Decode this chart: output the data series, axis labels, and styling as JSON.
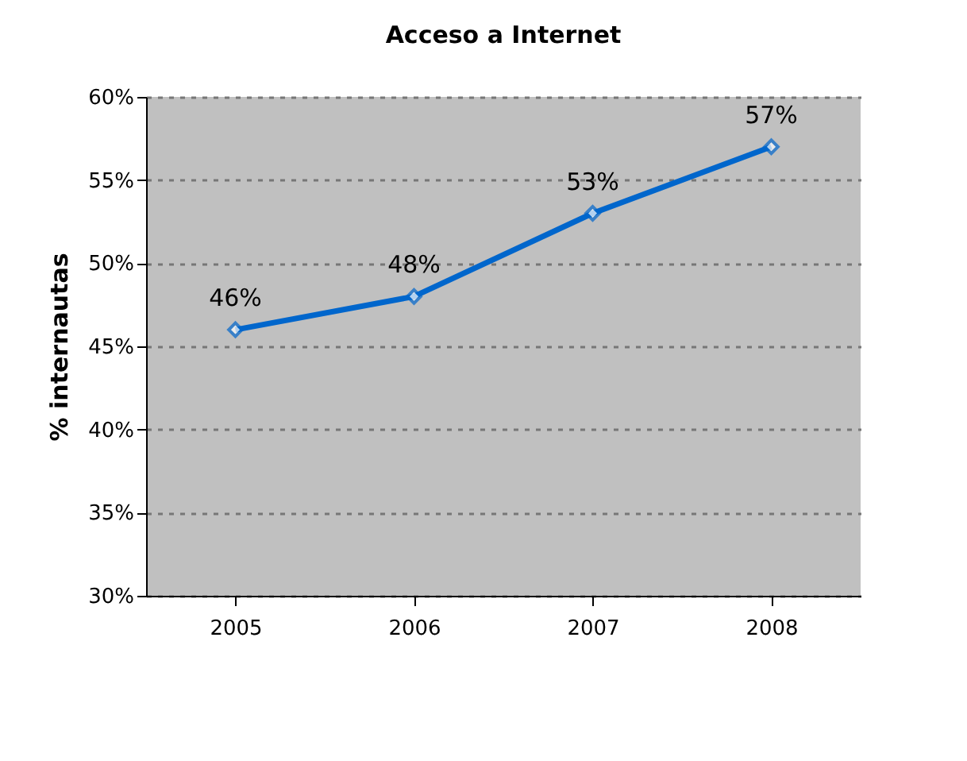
{
  "chart_data": {
    "type": "line",
    "title": "Acceso a Internet",
    "ylabel": "% internautas",
    "categories": [
      "2005",
      "2006",
      "2007",
      "2008"
    ],
    "series": [
      {
        "color": "#0066cc",
        "values": [
          46,
          48,
          53,
          57
        ],
        "value_labels": [
          "46%",
          "48%",
          "53%",
          "57%"
        ]
      }
    ],
    "ylim": [
      30,
      60
    ],
    "yticks": [
      {
        "value": 30,
        "label": "30%"
      },
      {
        "value": 35,
        "label": "35%"
      },
      {
        "value": 40,
        "label": "40%"
      },
      {
        "value": 45,
        "label": "45%"
      },
      {
        "value": 50,
        "label": "50%"
      },
      {
        "value": 55,
        "label": "55%"
      },
      {
        "value": 60,
        "label": "60%"
      }
    ],
    "grid": "y",
    "marker": "diamond",
    "line_style": "solid"
  }
}
